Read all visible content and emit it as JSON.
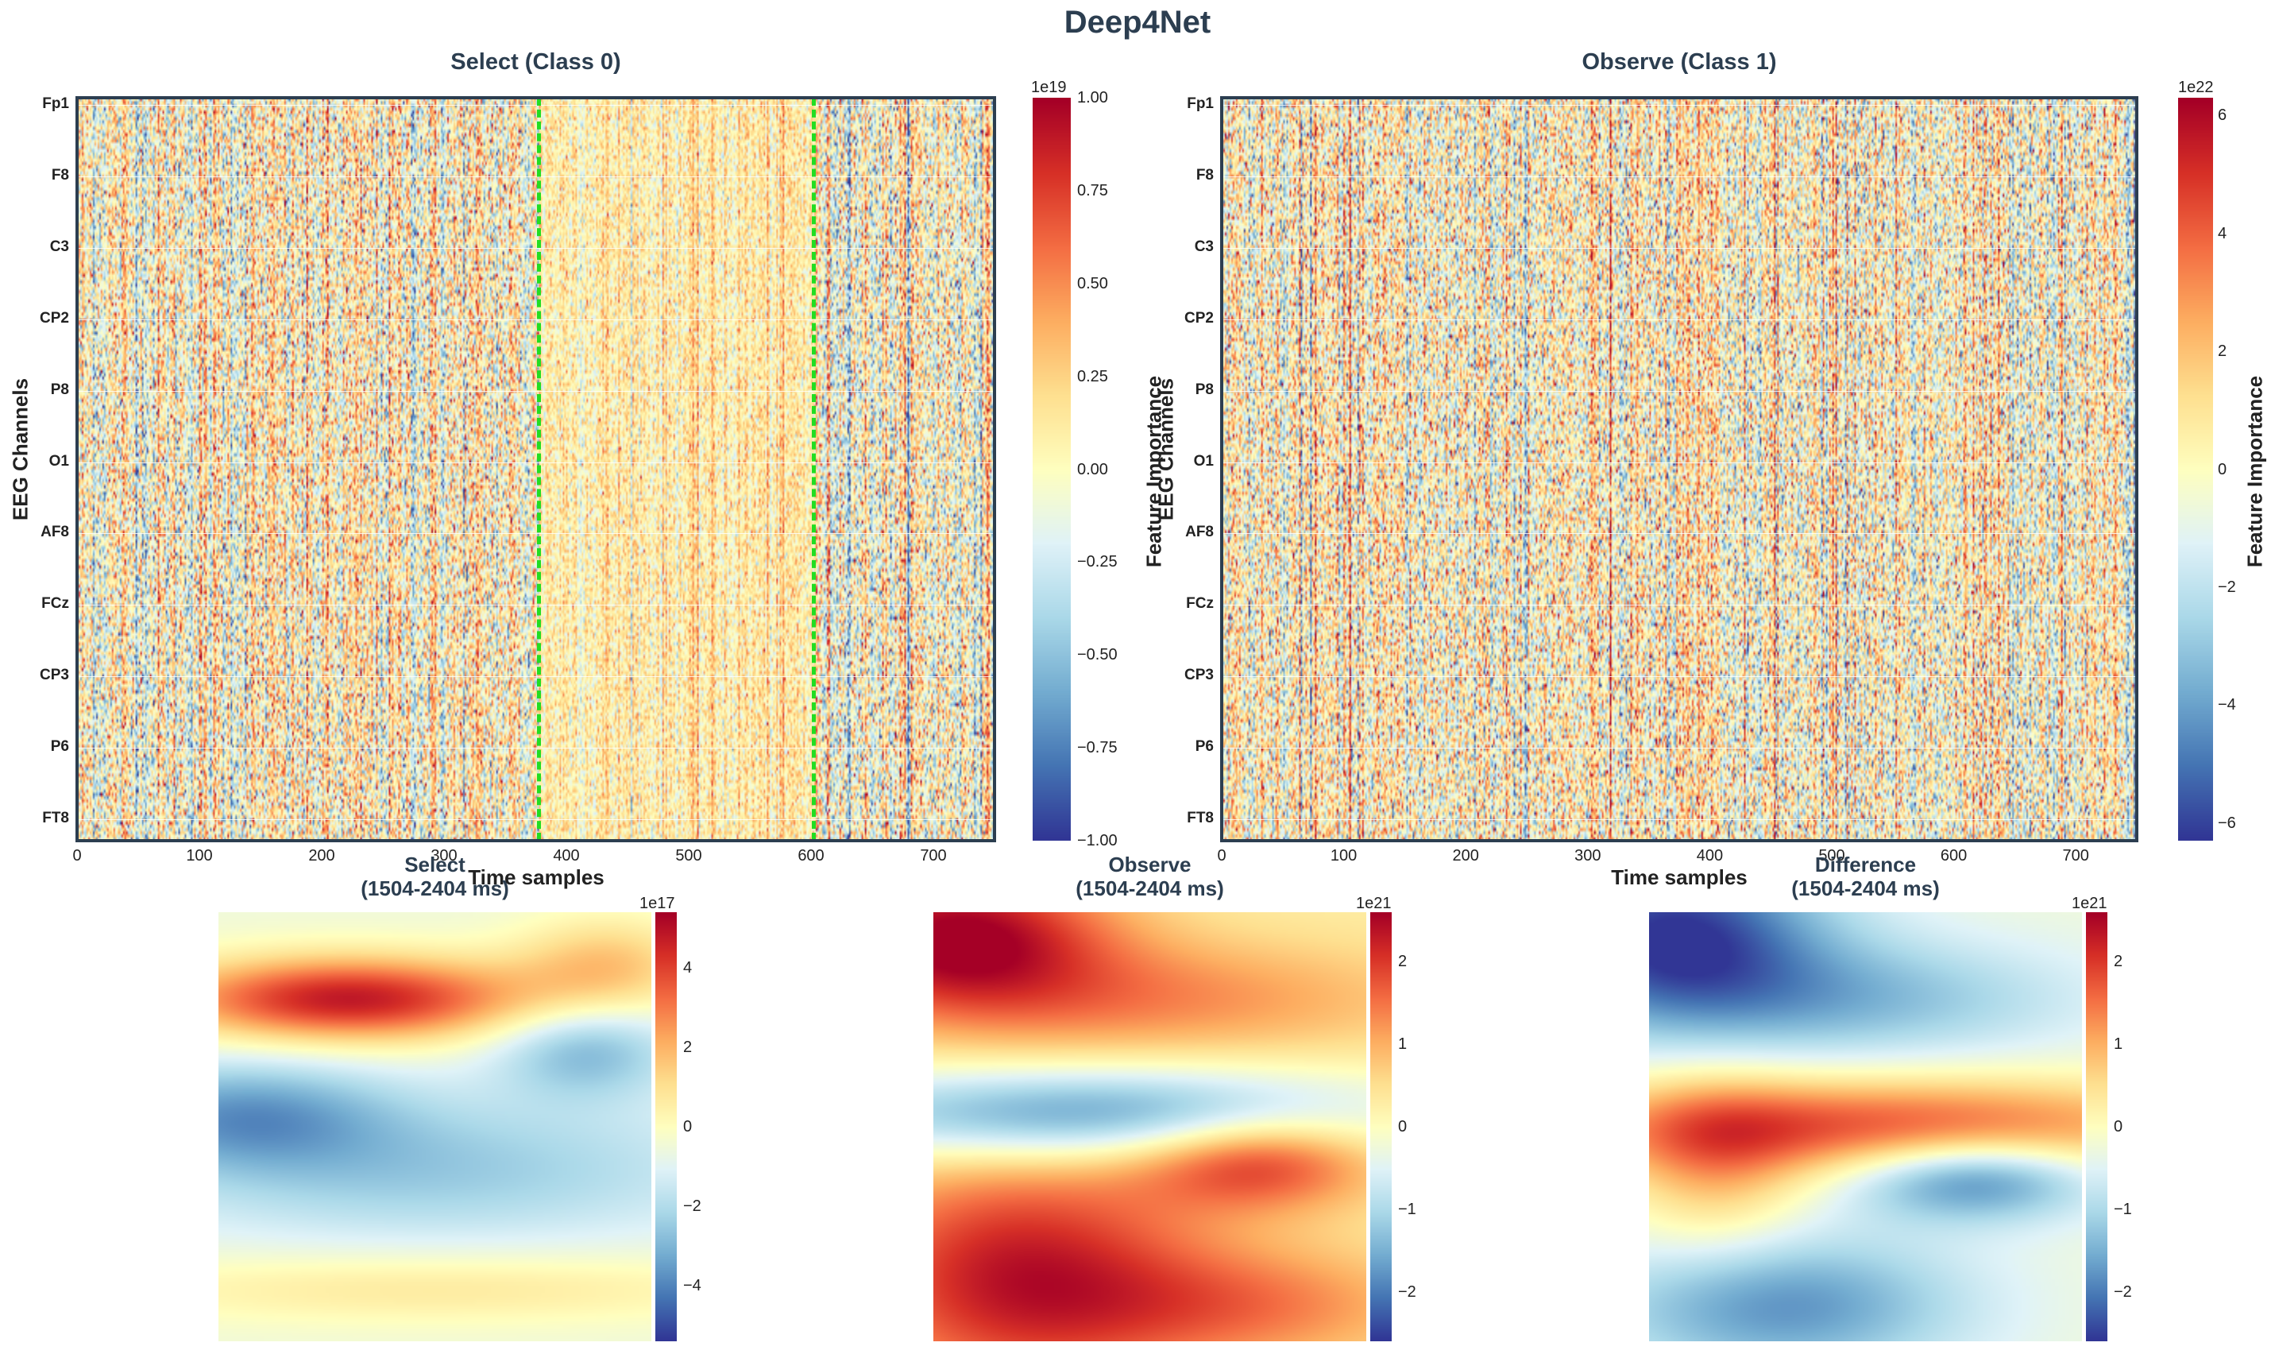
{
  "suptitle": "Deep4Net",
  "colors": {
    "title": "#2c3e50",
    "marker": "#22dd22"
  },
  "colormap": "RdYlBu_r",
  "chart_data": [
    {
      "id": "select-class0",
      "type": "heatmap",
      "title": "Select (Class 0)",
      "xlabel": "Time samples",
      "ylabel": "EEG Channels",
      "xlim": [
        0,
        750
      ],
      "xticks": [
        "0",
        "100",
        "200",
        "300",
        "400",
        "500",
        "600",
        "700"
      ],
      "channel_labels": [
        "Fp1",
        "F8",
        "C3",
        "CP2",
        "P8",
        "O1",
        "AF8",
        "FCz",
        "CP3",
        "P6",
        "FT8"
      ],
      "highlight_window": [
        377,
        602
      ],
      "colorbar": {
        "label": "Feature Importance",
        "offset": "1e19",
        "range": [
          -1.0,
          1.0
        ],
        "ticks": [
          "1.00",
          "0.75",
          "0.50",
          "0.25",
          "0.00",
          "−0.25",
          "−0.50",
          "−0.75",
          "−1.00"
        ]
      }
    },
    {
      "id": "observe-class1",
      "type": "heatmap",
      "title": "Observe (Class 1)",
      "xlabel": "Time samples",
      "ylabel": "EEG Channels",
      "xlim": [
        0,
        750
      ],
      "xticks": [
        "0",
        "100",
        "200",
        "300",
        "400",
        "500",
        "600",
        "700"
      ],
      "channel_labels": [
        "Fp1",
        "F8",
        "C3",
        "CP2",
        "P8",
        "O1",
        "AF8",
        "FCz",
        "CP3",
        "P6",
        "FT8"
      ],
      "colorbar": {
        "label": "Feature Importance",
        "offset": "1e22",
        "range": [
          -6.3,
          6.3
        ],
        "ticks": [
          "6",
          "4",
          "2",
          "0",
          "−2",
          "−4",
          "−6"
        ]
      }
    },
    {
      "id": "select-window",
      "type": "heatmap",
      "title": "Select\n(1504-2404 ms)",
      "colorbar": {
        "offset": "1e17",
        "range": [
          -5.4,
          5.4
        ],
        "ticks": [
          "4",
          "2",
          "0",
          "−2",
          "−4"
        ]
      }
    },
    {
      "id": "observe-window",
      "type": "heatmap",
      "title": "Observe\n(1504-2404 ms)",
      "colorbar": {
        "offset": "1e21",
        "range": [
          -2.6,
          2.6
        ],
        "ticks": [
          "2",
          "1",
          "0",
          "−1",
          "−2"
        ]
      }
    },
    {
      "id": "difference-window",
      "type": "heatmap",
      "title": "Difference\n(1504-2404 ms)",
      "colorbar": {
        "offset": "1e21",
        "range": [
          -2.6,
          2.6
        ],
        "ticks": [
          "2",
          "1",
          "0",
          "−1",
          "−2"
        ]
      }
    }
  ]
}
